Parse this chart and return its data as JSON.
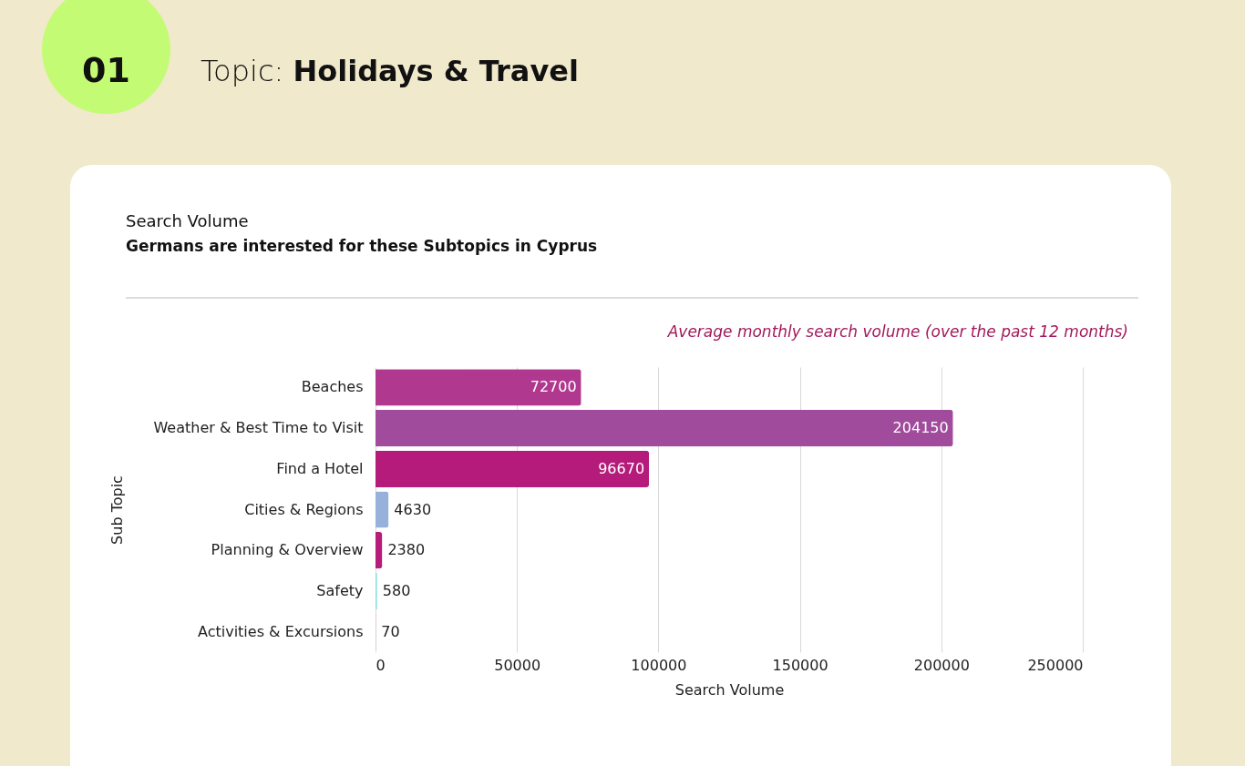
{
  "chart_data": {
    "type": "bar",
    "orientation": "horizontal",
    "title": "Topic: Holidays & Travel",
    "subtitle": "Germans are interested for these Subtopics in Cyprus",
    "annotations": [
      "01",
      "Search Volume",
      "Average monthly search volume (over the past 12 months)"
    ],
    "xlabel": "Search Volume",
    "ylabel": "Sub Topic",
    "categories": [
      "Beaches",
      "Weather & Best Time to Visit",
      "Find a Hotel",
      "Cities & Regions",
      "Planning & Overview",
      "Safety",
      "Activities & Excursions"
    ],
    "values": [
      72700,
      204150,
      96670,
      4630,
      2380,
      580,
      70
    ],
    "colors": [
      "#b0388e",
      "#a04b9c",
      "#b51b7a",
      "#98b1da",
      "#b71c7b",
      "#8ce0e0",
      "#b71c7b"
    ],
    "xlim": [
      0,
      250000
    ],
    "xticks": [
      0,
      50000,
      100000,
      150000,
      200000,
      250000
    ],
    "grid": "x",
    "data_labels": true
  }
}
